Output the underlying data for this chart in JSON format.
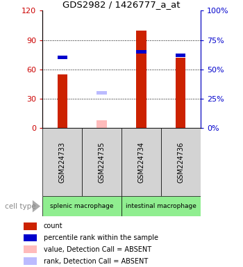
{
  "title": "GDS2982 / 1426777_a_at",
  "samples": [
    "GSM224733",
    "GSM224735",
    "GSM224734",
    "GSM224736"
  ],
  "groups": [
    {
      "label": "splenic macrophage",
      "color": "#90EE90",
      "samples": [
        0,
        1
      ]
    },
    {
      "label": "intestinal macrophage",
      "color": "#90EE90",
      "samples": [
        2,
        3
      ]
    }
  ],
  "bar_values": [
    55,
    8,
    100,
    72
  ],
  "bar_absent": [
    false,
    true,
    false,
    false
  ],
  "rank_values": [
    60,
    30,
    65,
    62
  ],
  "rank_absent": [
    false,
    true,
    false,
    false
  ],
  "ylim_left": [
    0,
    120
  ],
  "ylim_right": [
    0,
    100
  ],
  "yticks_left": [
    0,
    30,
    60,
    90,
    120
  ],
  "yticks_right": [
    0,
    25,
    50,
    75,
    100
  ],
  "ytick_labels_left": [
    "0",
    "30",
    "60",
    "90",
    "120"
  ],
  "ytick_labels_right": [
    "0%",
    "25%",
    "50%",
    "75%",
    "100%"
  ],
  "left_axis_color": "#cc0000",
  "right_axis_color": "#0000cc",
  "bar_color_present": "#cc2200",
  "bar_color_absent": "#ffbbbb",
  "rank_color_present": "#0000cc",
  "rank_color_absent": "#bbbbff",
  "bar_width": 0.25,
  "rank_marker_size": 7,
  "cell_type_label": "cell type",
  "legend_items": [
    {
      "color": "#cc2200",
      "label": "count"
    },
    {
      "color": "#0000cc",
      "label": "percentile rank within the sample"
    },
    {
      "color": "#ffbbbb",
      "label": "value, Detection Call = ABSENT"
    },
    {
      "color": "#bbbbff",
      "label": "rank, Detection Call = ABSENT"
    }
  ],
  "grid_yticks": [
    30,
    60,
    90
  ],
  "sample_box_color": "#d3d3d3",
  "group_box_color": "#90EE90"
}
